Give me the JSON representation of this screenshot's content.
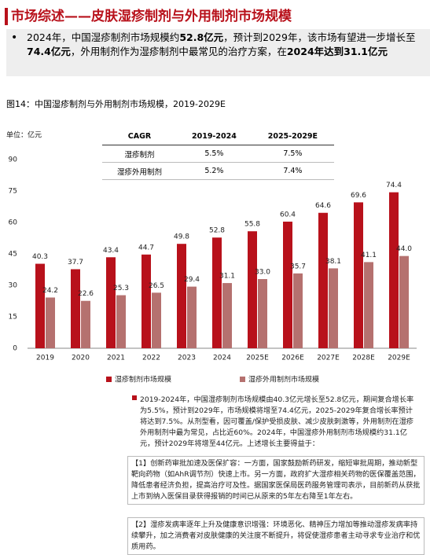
{
  "header": {
    "title": "市场综述——皮肤湿疹制剂与外用制剂市场规模"
  },
  "summary": {
    "segments": [
      "2024年，中国湿疹制剂市场规模约",
      "52.8亿元",
      "，预计到2029年，该市场有望进一步增长至",
      "74.4亿元",
      "，外用制剂作为湿疹制剂中最常见的治疗方案，在",
      "2024年达到31.1亿元"
    ]
  },
  "figure_caption": "图14：中国湿疹制剂与外用制剂市场规模，2019-2029E",
  "chart_data": {
    "type": "bar",
    "unit_label": "单位：亿元",
    "categories": [
      "2019",
      "2020",
      "2021",
      "2022",
      "2023",
      "2024",
      "2025E",
      "2026E",
      "2027E",
      "2028E",
      "2029E"
    ],
    "series": [
      {
        "name": "湿疹制剂市场规模",
        "color": "#b8111b",
        "values": [
          40.3,
          37.7,
          43.4,
          44.7,
          49.8,
          52.8,
          55.8,
          60.4,
          64.6,
          69.6,
          74.4
        ],
        "value_labels": [
          "40.3",
          "37.7",
          "43.4",
          "44.7",
          "49.8",
          "52.8",
          "55.8",
          "60.4",
          "64.6",
          "69.6",
          "74.4"
        ]
      },
      {
        "name": "湿疹外用制剂市场规模",
        "color": "#b5716f",
        "values": [
          24.2,
          22.6,
          25.3,
          26.5,
          29.4,
          31.1,
          33.0,
          35.7,
          38.1,
          41.1,
          44.0
        ],
        "value_labels": [
          "24.2",
          "22.6",
          "25.3",
          "26.5",
          "29.4",
          "31.1",
          "33.0",
          "35.7",
          "38.1",
          "41.1",
          "44.0"
        ]
      }
    ],
    "ylim": [
      0,
      90
    ],
    "yticks": [
      0,
      15,
      30,
      45,
      60,
      75,
      90
    ],
    "grid": false
  },
  "cagr_table": {
    "header": [
      "CAGR",
      "2019-2024",
      "2025-2029E"
    ],
    "rows": [
      [
        "湿疹制剂",
        "5.5%",
        "7.5%"
      ],
      [
        "湿疹外用制剂",
        "5.2%",
        "7.4%"
      ]
    ]
  },
  "body": {
    "paragraphs": [
      "2019-2024年，中国湿疹制剂市场规模由40.3亿元增长至52.8亿元，期间复合增长率为5.5%，预计到2029年，市场规模将增至74.4亿元，2025-2029年复合增长率预计将达到7.5%。从剂型看，因可覆盖/保护受损皮肤、减少皮肤刺激等，外用制剂在湿疹外用制剂中最为常见，占比近60%。2024年，中国湿疹外用制剂市场规模约31.1亿元，预计2029年将增至44亿元。上述增长主要得益于：",
      "【1】创新药审批加速及医保扩容：一方面，国家鼓励新药研发，缩短审批周期，推动新型靶向药物（如AhR调节剂）快速上市。另一方面，政府扩大湿疹相关药物的医保覆盖范围，降低患者经济负担，提高治疗可及性。据国家医保局医药服务管理司表示，目前新药从获批上市到纳入医保目录获得报销的时间已从原来的5年左右降至1年左右。",
      "【2】湿疹发病率逐年上升及健康意识增强：环境恶化、精神压力增加等推动湿疹发病率持续攀升，加之消费者对皮肤健康的关注度不断提升，将促使湿疹患者主动寻求专业治疗和优质用药。"
    ]
  }
}
